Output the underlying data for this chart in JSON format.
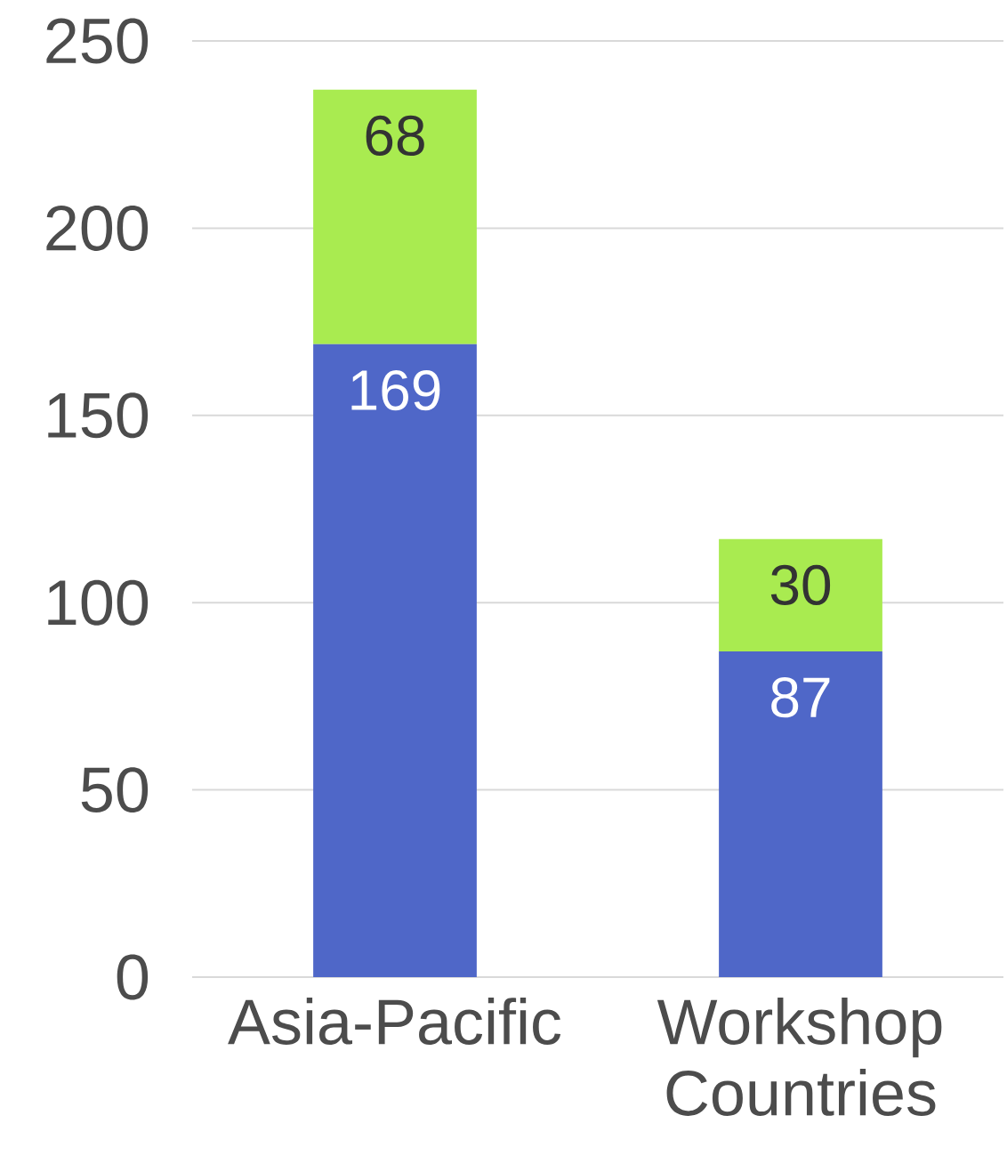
{
  "chart_data": {
    "type": "bar",
    "stacked": true,
    "categories": [
      "Asia-Pacific",
      "Workshop Countries"
    ],
    "series": [
      {
        "color": "#4f67c8",
        "values": [
          169,
          87
        ]
      },
      {
        "color": "#a9eb50",
        "values": [
          68,
          30
        ]
      }
    ],
    "ylim": [
      0,
      250
    ],
    "yticks": [
      0,
      50,
      100,
      150,
      200,
      250
    ],
    "grid": "y",
    "data_labels": true
  }
}
